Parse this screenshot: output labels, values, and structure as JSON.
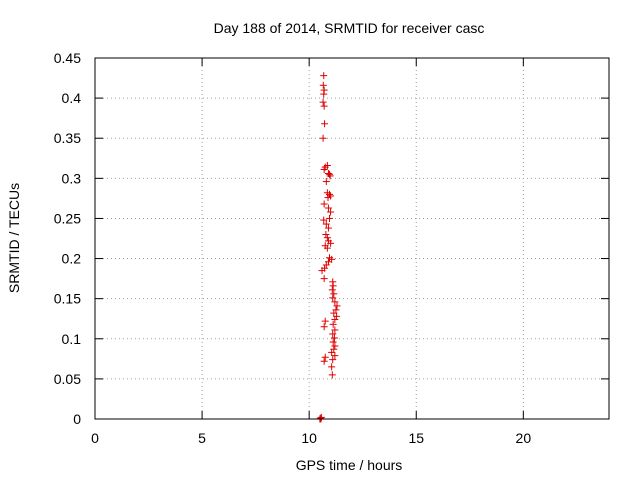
{
  "chart_data": {
    "type": "scatter",
    "title": "Day 188 of 2014, SRMTID for receiver casc",
    "xlabel": "GPS time / hours",
    "ylabel": "SRMTID / TECUs",
    "xlim": [
      0,
      24
    ],
    "ylim": [
      0,
      0.45
    ],
    "xticks": [
      0,
      5,
      10,
      15,
      20
    ],
    "xtick_labels": [
      "0",
      "5",
      "10",
      "15",
      "20"
    ],
    "yticks": [
      0,
      0.05,
      0.1,
      0.15,
      0.2,
      0.25,
      0.3,
      0.35,
      0.4,
      0.45
    ],
    "ytick_labels": [
      "0",
      "0.05",
      "0.1",
      "0.15",
      "0.2",
      "0.25",
      "0.3",
      "0.35",
      "0.4",
      "0.45"
    ],
    "grid": true,
    "marker": "+",
    "color": "#dd0000",
    "points": [
      [
        10.5,
        0.0
      ],
      [
        10.52,
        0.001
      ],
      [
        10.55,
        0.0
      ],
      [
        10.57,
        0.002
      ],
      [
        10.68,
        0.428
      ],
      [
        10.66,
        0.416
      ],
      [
        10.7,
        0.41
      ],
      [
        10.68,
        0.405
      ],
      [
        10.65,
        0.395
      ],
      [
        10.7,
        0.39
      ],
      [
        10.72,
        0.368
      ],
      [
        10.65,
        0.35
      ],
      [
        10.85,
        0.316
      ],
      [
        10.75,
        0.314
      ],
      [
        10.7,
        0.311
      ],
      [
        10.95,
        0.305
      ],
      [
        10.9,
        0.306
      ],
      [
        10.98,
        0.303
      ],
      [
        10.8,
        0.296
      ],
      [
        10.85,
        0.282
      ],
      [
        10.95,
        0.28
      ],
      [
        11.0,
        0.278
      ],
      [
        10.88,
        0.276
      ],
      [
        10.7,
        0.268
      ],
      [
        10.9,
        0.263
      ],
      [
        11.0,
        0.258
      ],
      [
        10.95,
        0.25
      ],
      [
        10.68,
        0.248
      ],
      [
        10.8,
        0.243
      ],
      [
        10.9,
        0.238
      ],
      [
        10.78,
        0.23
      ],
      [
        10.85,
        0.226
      ],
      [
        10.9,
        0.222
      ],
      [
        11.0,
        0.219
      ],
      [
        10.75,
        0.216
      ],
      [
        10.85,
        0.213
      ],
      [
        10.95,
        0.201
      ],
      [
        11.05,
        0.199
      ],
      [
        10.9,
        0.196
      ],
      [
        10.8,
        0.192
      ],
      [
        10.72,
        0.188
      ],
      [
        10.6,
        0.185
      ],
      [
        10.7,
        0.175
      ],
      [
        11.1,
        0.171
      ],
      [
        11.12,
        0.166
      ],
      [
        11.08,
        0.161
      ],
      [
        11.15,
        0.156
      ],
      [
        11.1,
        0.151
      ],
      [
        11.2,
        0.146
      ],
      [
        11.3,
        0.141
      ],
      [
        11.25,
        0.136
      ],
      [
        11.15,
        0.132
      ],
      [
        11.28,
        0.128
      ],
      [
        11.2,
        0.124
      ],
      [
        10.75,
        0.122
      ],
      [
        11.12,
        0.118
      ],
      [
        10.7,
        0.115
      ],
      [
        11.2,
        0.111
      ],
      [
        11.1,
        0.106
      ],
      [
        11.18,
        0.101
      ],
      [
        11.12,
        0.096
      ],
      [
        11.2,
        0.091
      ],
      [
        11.15,
        0.087
      ],
      [
        11.05,
        0.083
      ],
      [
        11.2,
        0.079
      ],
      [
        10.75,
        0.077
      ],
      [
        11.1,
        0.074
      ],
      [
        10.7,
        0.072
      ],
      [
        11.05,
        0.065
      ],
      [
        11.08,
        0.055
      ]
    ]
  }
}
